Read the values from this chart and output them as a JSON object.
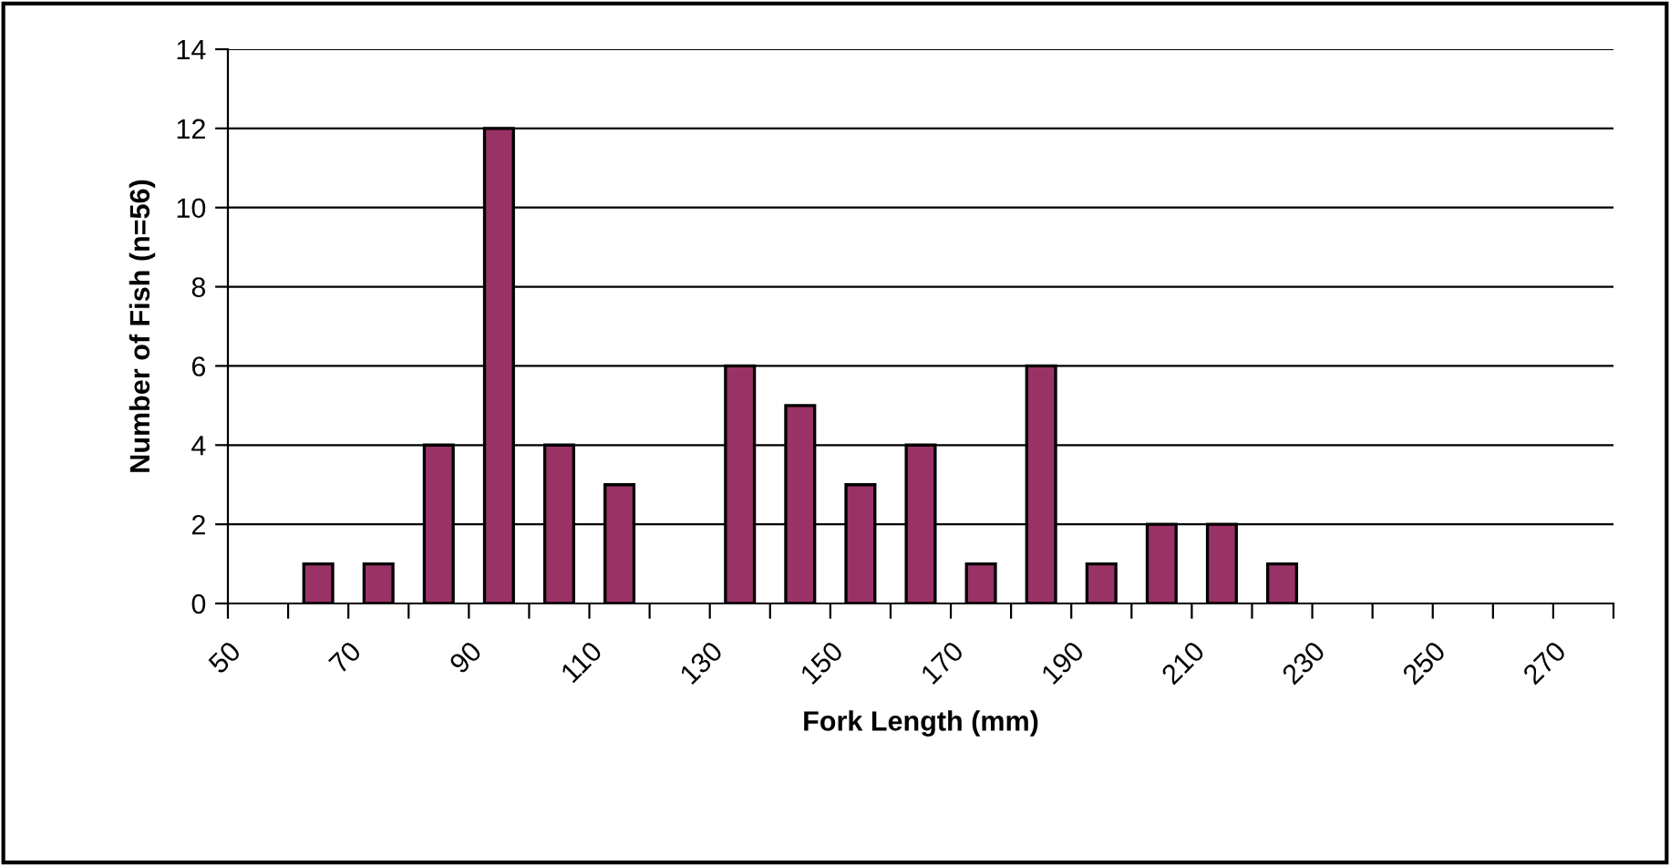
{
  "chart_data": {
    "type": "histogram",
    "xlabel": "Fork Length (mm)",
    "ylabel": "Number of Fish (n=56)",
    "bins": [
      50,
      60,
      70,
      80,
      90,
      100,
      110,
      120,
      130,
      140,
      150,
      160,
      170,
      180,
      190,
      200,
      210,
      220,
      230,
      240,
      250,
      260,
      270,
      280
    ],
    "values": [
      0,
      1,
      1,
      4,
      12,
      4,
      3,
      0,
      6,
      5,
      3,
      4,
      1,
      6,
      1,
      2,
      2,
      1,
      0,
      0,
      0,
      0,
      0
    ],
    "color": "#993366",
    "xlim": [
      50,
      280
    ],
    "xticks": [
      50,
      {
        "value": 60,
        "label": null
      },
      70,
      {
        "value": 80,
        "label": null
      },
      90,
      {
        "value": 100,
        "label": null
      },
      110,
      {
        "value": 120,
        "label": null
      },
      130,
      {
        "value": 140,
        "label": null
      },
      150,
      {
        "value": 160,
        "label": null
      },
      170,
      {
        "value": 180,
        "label": null
      },
      190,
      {
        "value": 200,
        "label": null
      },
      210,
      {
        "value": 220,
        "label": null
      },
      230,
      {
        "value": 240,
        "label": null
      },
      250,
      {
        "value": 260,
        "label": null
      },
      270,
      {
        "value": 280,
        "label": null
      }
    ],
    "ylim": [
      0,
      14
    ],
    "yticks": [
      0,
      2,
      4,
      6,
      8,
      10,
      12,
      14
    ],
    "grid": "y"
  }
}
